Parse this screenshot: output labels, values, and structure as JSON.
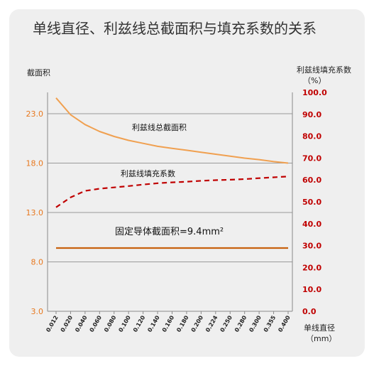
{
  "chart_data": {
    "type": "line",
    "title": "单线直径、利兹线总截面积与填充系数的关系",
    "ylabel_left": "截面积",
    "ylabel_right_line1": "利兹线填充系数",
    "ylabel_right_line2": "（%）",
    "xlabel_line1": "单线直径",
    "xlabel_line2": "（mm）",
    "categories": [
      "0.012",
      "0.020",
      "0.040",
      "0.060",
      "0.080",
      "0.100",
      "0.120",
      "0.140",
      "0.160",
      "0.180",
      "0.200",
      "0.224",
      "0.250",
      "0.280",
      "0.300",
      "0.355",
      "0.400"
    ],
    "y_left_ticks": [
      "3.0",
      "8.0",
      "13.0",
      "18.0",
      "23.0"
    ],
    "y_left_range": [
      3.0,
      23.0
    ],
    "y_right_ticks": [
      "0.0",
      "10.0",
      "20.0",
      "30.0",
      "40.0",
      "50.0",
      "60.0",
      "70.0",
      "80.0",
      "90.0",
      "100.0"
    ],
    "y_right_range": [
      0,
      100
    ],
    "series": [
      {
        "name": "利兹线总截面积",
        "axis": "left",
        "style": "solid",
        "color": "#f0a050",
        "values": [
          24.6,
          22.9,
          21.9,
          21.2,
          20.7,
          20.3,
          20.0,
          19.7,
          19.5,
          19.3,
          19.1,
          18.9,
          18.7,
          18.5,
          18.35,
          18.15,
          18.0
        ]
      },
      {
        "name": "利兹线填充系数",
        "axis": "right",
        "style": "dashed",
        "color": "#c00000",
        "values": [
          47.5,
          52.0,
          55.0,
          56.0,
          56.6,
          57.2,
          57.9,
          58.5,
          58.9,
          59.2,
          59.6,
          59.9,
          60.1,
          60.4,
          60.8,
          61.2,
          61.6
        ]
      },
      {
        "name": "固定导体截面积=9.4mm²",
        "axis": "left",
        "style": "solid",
        "color": "#c8620f",
        "values": [
          9.4,
          9.4,
          9.4,
          9.4,
          9.4,
          9.4,
          9.4,
          9.4,
          9.4,
          9.4,
          9.4,
          9.4,
          9.4,
          9.4,
          9.4,
          9.4,
          9.4
        ]
      }
    ],
    "annotations": [
      "利兹线总截面积",
      "利兹线填充系数",
      "固定导体截面积=9.4mm²"
    ],
    "grid": true
  }
}
